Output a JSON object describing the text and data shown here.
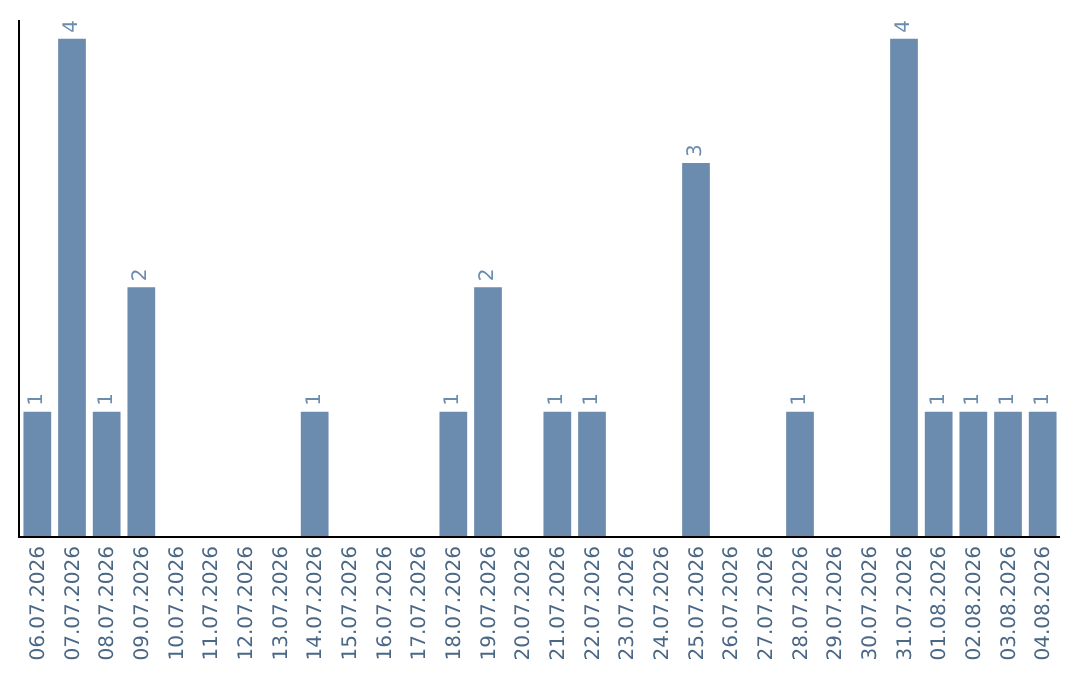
{
  "chart_data": {
    "type": "bar",
    "categories": [
      "06.07.2026",
      "07.07.2026",
      "08.07.2026",
      "09.07.2026",
      "10.07.2026",
      "11.07.2026",
      "12.07.2026",
      "13.07.2026",
      "14.07.2026",
      "15.07.2026",
      "16.07.2026",
      "17.07.2026",
      "18.07.2026",
      "19.07.2026",
      "20.07.2026",
      "21.07.2026",
      "22.07.2026",
      "23.07.2026",
      "24.07.2026",
      "25.07.2026",
      "26.07.2026",
      "27.07.2026",
      "28.07.2026",
      "29.07.2026",
      "30.07.2026",
      "31.07.2026",
      "01.08.2026",
      "02.08.2026",
      "03.08.2026",
      "04.08.2026"
    ],
    "values": [
      1,
      4,
      1,
      2,
      0,
      0,
      0,
      0,
      1,
      0,
      0,
      0,
      1,
      2,
      0,
      1,
      1,
      0,
      0,
      3,
      0,
      0,
      1,
      0,
      0,
      4,
      1,
      1,
      1,
      1
    ],
    "value_labels": [
      "1",
      "4",
      "1",
      "2",
      null,
      null,
      null,
      null,
      "1",
      null,
      null,
      null,
      "1",
      "2",
      null,
      "1",
      "1",
      null,
      null,
      "3",
      null,
      null,
      "1",
      null,
      null,
      "4",
      "1",
      "1",
      "1",
      "1"
    ],
    "color": "#6b8caf",
    "ylim": [
      0,
      4.15
    ],
    "tick_labels": "x",
    "grid": false,
    "legend": false
  }
}
